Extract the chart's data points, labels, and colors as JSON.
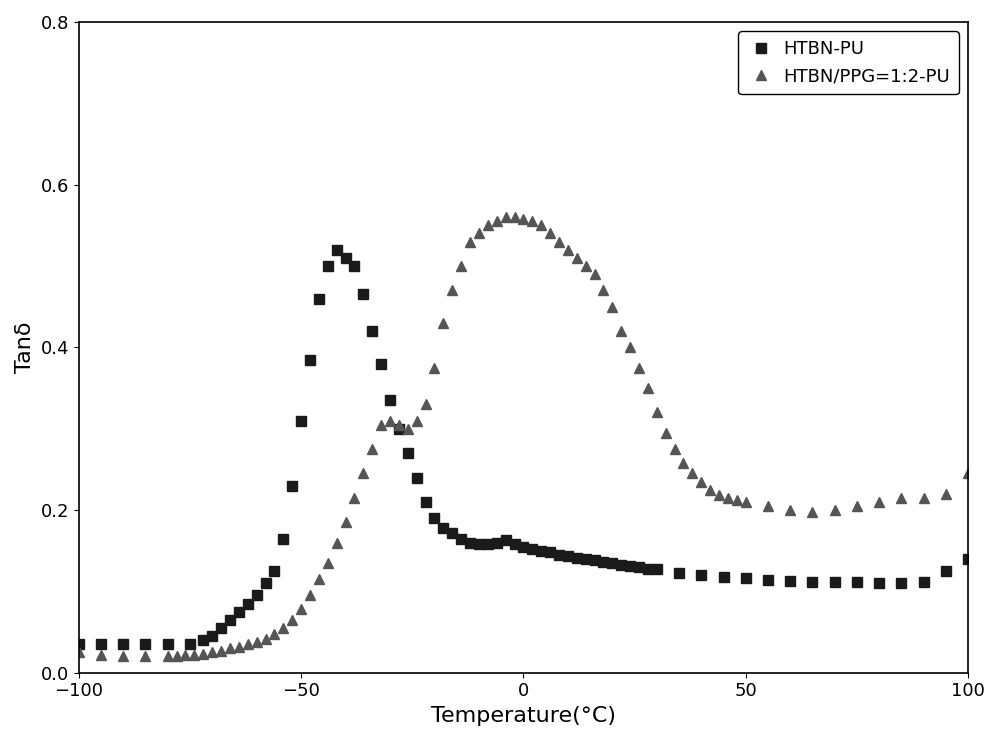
{
  "title": "",
  "xlabel": "Temperature(°C)",
  "ylabel": "Tanδ",
  "xlim": [
    -100,
    100
  ],
  "ylim": [
    0.0,
    0.8
  ],
  "yticks": [
    0.0,
    0.2,
    0.4,
    0.6,
    0.8
  ],
  "xticks": [
    -100,
    -50,
    0,
    50,
    100
  ],
  "background_color": "#ffffff",
  "series1_label": "HTBN-PU",
  "series2_label": "HTBN/PPG=1:2-PU",
  "series1_color": "#1a1a1a",
  "series2_color": "#555555",
  "series1_marker": "s",
  "series2_marker": "^",
  "marker_size": 7,
  "series1_x": [
    -100,
    -95,
    -90,
    -85,
    -80,
    -75,
    -72,
    -70,
    -68,
    -66,
    -64,
    -62,
    -60,
    -58,
    -56,
    -54,
    -52,
    -50,
    -48,
    -46,
    -44,
    -42,
    -40,
    -38,
    -36,
    -34,
    -32,
    -30,
    -28,
    -26,
    -24,
    -22,
    -20,
    -18,
    -16,
    -14,
    -12,
    -10,
    -8,
    -6,
    -4,
    -2,
    0,
    2,
    4,
    6,
    8,
    10,
    12,
    14,
    16,
    18,
    20,
    22,
    24,
    26,
    28,
    30,
    35,
    40,
    45,
    50,
    55,
    60,
    65,
    70,
    75,
    80,
    85,
    90,
    95,
    100
  ],
  "series1_y": [
    0.035,
    0.035,
    0.035,
    0.035,
    0.035,
    0.035,
    0.04,
    0.045,
    0.055,
    0.065,
    0.075,
    0.085,
    0.095,
    0.11,
    0.125,
    0.165,
    0.23,
    0.31,
    0.385,
    0.46,
    0.5,
    0.52,
    0.51,
    0.5,
    0.465,
    0.42,
    0.38,
    0.335,
    0.3,
    0.27,
    0.24,
    0.21,
    0.19,
    0.178,
    0.172,
    0.165,
    0.16,
    0.158,
    0.158,
    0.16,
    0.163,
    0.158,
    0.155,
    0.152,
    0.15,
    0.148,
    0.145,
    0.143,
    0.141,
    0.14,
    0.138,
    0.136,
    0.135,
    0.133,
    0.131,
    0.13,
    0.128,
    0.127,
    0.123,
    0.12,
    0.118,
    0.116,
    0.114,
    0.113,
    0.112,
    0.111,
    0.111,
    0.11,
    0.11,
    0.112,
    0.125,
    0.14
  ],
  "series2_x": [
    -100,
    -95,
    -90,
    -85,
    -80,
    -78,
    -76,
    -74,
    -72,
    -70,
    -68,
    -66,
    -64,
    -62,
    -60,
    -58,
    -56,
    -54,
    -52,
    -50,
    -48,
    -46,
    -44,
    -42,
    -40,
    -38,
    -36,
    -34,
    -32,
    -30,
    -28,
    -26,
    -24,
    -22,
    -20,
    -18,
    -16,
    -14,
    -12,
    -10,
    -8,
    -6,
    -4,
    -2,
    0,
    2,
    4,
    6,
    8,
    10,
    12,
    14,
    16,
    18,
    20,
    22,
    24,
    26,
    28,
    30,
    32,
    34,
    36,
    38,
    40,
    42,
    44,
    46,
    48,
    50,
    55,
    60,
    65,
    70,
    75,
    80,
    85,
    90,
    95,
    100
  ],
  "series2_y": [
    0.025,
    0.022,
    0.02,
    0.02,
    0.02,
    0.02,
    0.022,
    0.022,
    0.023,
    0.025,
    0.027,
    0.03,
    0.032,
    0.035,
    0.038,
    0.042,
    0.048,
    0.055,
    0.065,
    0.078,
    0.095,
    0.115,
    0.135,
    0.16,
    0.185,
    0.215,
    0.245,
    0.275,
    0.305,
    0.31,
    0.305,
    0.3,
    0.31,
    0.33,
    0.375,
    0.43,
    0.47,
    0.5,
    0.53,
    0.54,
    0.55,
    0.555,
    0.56,
    0.56,
    0.558,
    0.555,
    0.55,
    0.54,
    0.53,
    0.52,
    0.51,
    0.5,
    0.49,
    0.47,
    0.45,
    0.42,
    0.4,
    0.375,
    0.35,
    0.32,
    0.295,
    0.275,
    0.258,
    0.245,
    0.235,
    0.225,
    0.218,
    0.215,
    0.212,
    0.21,
    0.205,
    0.2,
    0.198,
    0.2,
    0.205,
    0.21,
    0.215,
    0.215,
    0.22,
    0.245
  ]
}
